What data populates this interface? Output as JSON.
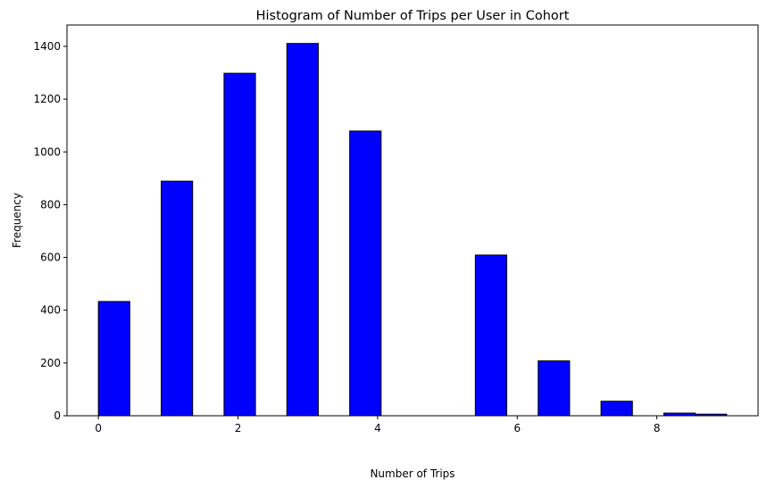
{
  "chart_data": {
    "type": "bar",
    "title": "Histogram of Number of Trips per User in Cohort",
    "xlabel": "Number of Trips",
    "ylabel": "Frequency",
    "bins": [
      {
        "start": 0.0,
        "end": 0.45,
        "value": 433
      },
      {
        "start": 0.9,
        "end": 1.35,
        "value": 889
      },
      {
        "start": 1.8,
        "end": 2.25,
        "value": 1298
      },
      {
        "start": 2.7,
        "end": 3.15,
        "value": 1411
      },
      {
        "start": 3.6,
        "end": 4.05,
        "value": 1079
      },
      {
        "start": 4.5,
        "end": 4.95,
        "value": 0
      },
      {
        "start": 5.4,
        "end": 5.85,
        "value": 609
      },
      {
        "start": 6.3,
        "end": 6.75,
        "value": 208
      },
      {
        "start": 7.2,
        "end": 7.65,
        "value": 55
      },
      {
        "start": 8.1,
        "end": 8.55,
        "value": 10
      },
      {
        "start": 8.55,
        "end": 9.0,
        "value": 6
      }
    ],
    "xlim": [
      -0.45,
      9.45
    ],
    "ylim": [
      0,
      1481
    ],
    "xticks": [
      0,
      2,
      4,
      6,
      8
    ],
    "yticks": [
      0,
      200,
      400,
      600,
      800,
      1000,
      1200,
      1400
    ],
    "bar_color": "#0000ff",
    "edge_color": "#000000",
    "grid": false,
    "legend": "none"
  }
}
